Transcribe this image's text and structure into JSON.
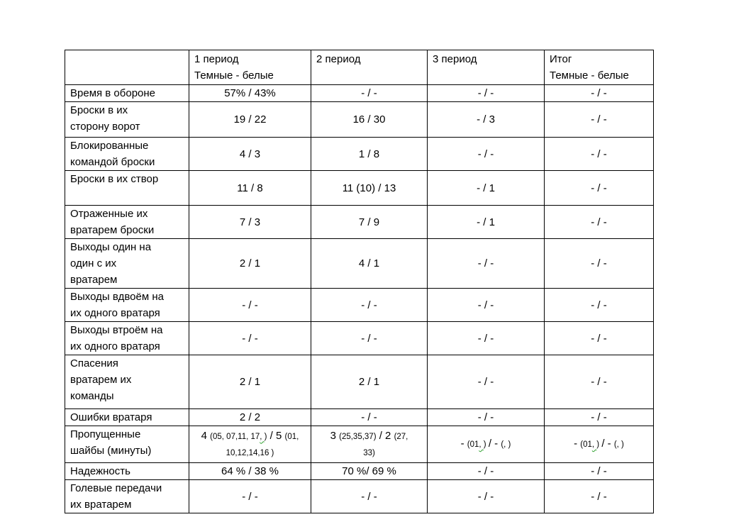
{
  "document": {
    "background_color": "#ffffff",
    "text_color": "#000000",
    "border_color": "#000000",
    "grammar_squiggle_color": "#2ca02c"
  },
  "table": {
    "corner_label": "",
    "columns": [
      {
        "id": "period1",
        "label": "1 период\nТемные - белые"
      },
      {
        "id": "period2",
        "label": "2 период"
      },
      {
        "id": "period3",
        "label": "3 период"
      },
      {
        "id": "total",
        "label": "Итог\nТемные - белые"
      }
    ],
    "rows": [
      {
        "label": "Время в обороне",
        "cells": [
          [
            {
              "t": "57% / 43%"
            }
          ],
          [
            {
              "t": "- / -"
            }
          ],
          [
            {
              "t": "- / -"
            }
          ],
          [
            {
              "t": "- / -"
            }
          ]
        ]
      },
      {
        "label": "Броски в их\nсторону ворот",
        "cells": [
          [
            {
              "t": "19 / 22"
            }
          ],
          [
            {
              "t": "16 / 30"
            }
          ],
          [
            {
              "t": "- / 3"
            }
          ],
          [
            {
              "t": "- / -"
            }
          ]
        ]
      },
      {
        "label": "Блокированные\nкомандой броски",
        "cells": [
          [
            {
              "t": "4 / 3"
            }
          ],
          [
            {
              "t": "1 / 8"
            }
          ],
          [
            {
              "t": "- / -"
            }
          ],
          [
            {
              "t": "- / -"
            }
          ]
        ]
      },
      {
        "label": "Броски в их створ",
        "cells": [
          [
            {
              "t": "11 / 8"
            }
          ],
          [
            {
              "t": "11 (10) / 13"
            }
          ],
          [
            {
              "t": "- / 1"
            }
          ],
          [
            {
              "t": "- / -"
            }
          ]
        ]
      },
      {
        "label": "Отраженные их\nвратарем броски",
        "cells": [
          [
            {
              "t": "7 / 3"
            }
          ],
          [
            {
              "t": "7 / 9"
            }
          ],
          [
            {
              "t": "- / 1"
            }
          ],
          [
            {
              "t": "- / -"
            }
          ]
        ]
      },
      {
        "label": "Выходы один на\nодин с их\nвратарем",
        "cells": [
          [
            {
              "t": "2 / 1"
            }
          ],
          [
            {
              "t": "4 / 1"
            }
          ],
          [
            {
              "t": "- / -"
            }
          ],
          [
            {
              "t": "- / -"
            }
          ]
        ]
      },
      {
        "label": "Выходы вдвоём на\nих одного вратаря",
        "cells": [
          [
            {
              "t": "- / -"
            }
          ],
          [
            {
              "t": "- / -"
            }
          ],
          [
            {
              "t": "- / -"
            }
          ],
          [
            {
              "t": "- / -"
            }
          ]
        ]
      },
      {
        "label": "Выходы втроём на\nих одного вратаря",
        "cells": [
          [
            {
              "t": "- / -"
            }
          ],
          [
            {
              "t": "- / -"
            }
          ],
          [
            {
              "t": "- / -"
            }
          ],
          [
            {
              "t": "- / -"
            }
          ]
        ]
      },
      {
        "label": "Спасения\nвратарем их\nкоманды",
        "cells": [
          [
            {
              "t": "2 / 1"
            }
          ],
          [
            {
              "t": "2 / 1"
            }
          ],
          [
            {
              "t": "- / -"
            }
          ],
          [
            {
              "t": "- / -"
            }
          ]
        ]
      },
      {
        "label": "Ошибки вратаря",
        "cells": [
          [
            {
              "t": "2 / 2"
            }
          ],
          [
            {
              "t": "- / -"
            }
          ],
          [
            {
              "t": "- / -"
            }
          ],
          [
            {
              "t": "- / -"
            }
          ]
        ]
      },
      {
        "label": "Пропущенные\nшайбы (минуты)",
        "cells": [
          [
            {
              "t": "4 "
            },
            {
              "t": "(05, 07,11, 17",
              "small": true
            },
            {
              "t": ", ",
              "small": true,
              "wavy": true
            },
            {
              "t": ")",
              "small": true
            },
            {
              "t": " / 5 "
            },
            {
              "t": "(01,\n10,12,14,16 )",
              "small": true
            }
          ],
          [
            {
              "t": "3 "
            },
            {
              "t": "(25,35,37)",
              "small": true
            },
            {
              "t": " / 2 "
            },
            {
              "t": "(27,\n33)",
              "small": true
            }
          ],
          [
            {
              "t": "- "
            },
            {
              "t": "(01",
              "small": true
            },
            {
              "t": ", ",
              "small": true,
              "wavy": true
            },
            {
              "t": ") ",
              "small": true
            },
            {
              "t": "/ - "
            },
            {
              "t": "(, )",
              "small": true
            }
          ],
          [
            {
              "t": "- "
            },
            {
              "t": "(01",
              "small": true
            },
            {
              "t": ", ",
              "small": true,
              "wavy": true
            },
            {
              "t": ") ",
              "small": true
            },
            {
              "t": "/ - "
            },
            {
              "t": "(, )",
              "small": true
            }
          ]
        ]
      },
      {
        "label": "Надежность",
        "cells": [
          [
            {
              "t": "64 % / 38 %"
            }
          ],
          [
            {
              "t": "70 %/ 69 %"
            }
          ],
          [
            {
              "t": "- / -"
            }
          ],
          [
            {
              "t": "- / -"
            }
          ]
        ]
      },
      {
        "label": "Голевые передачи\nих вратарем",
        "cells": [
          [
            {
              "t": "- / -"
            }
          ],
          [
            {
              "t": "- / -"
            }
          ],
          [
            {
              "t": "- / -"
            }
          ],
          [
            {
              "t": "- / -"
            }
          ]
        ]
      }
    ]
  }
}
